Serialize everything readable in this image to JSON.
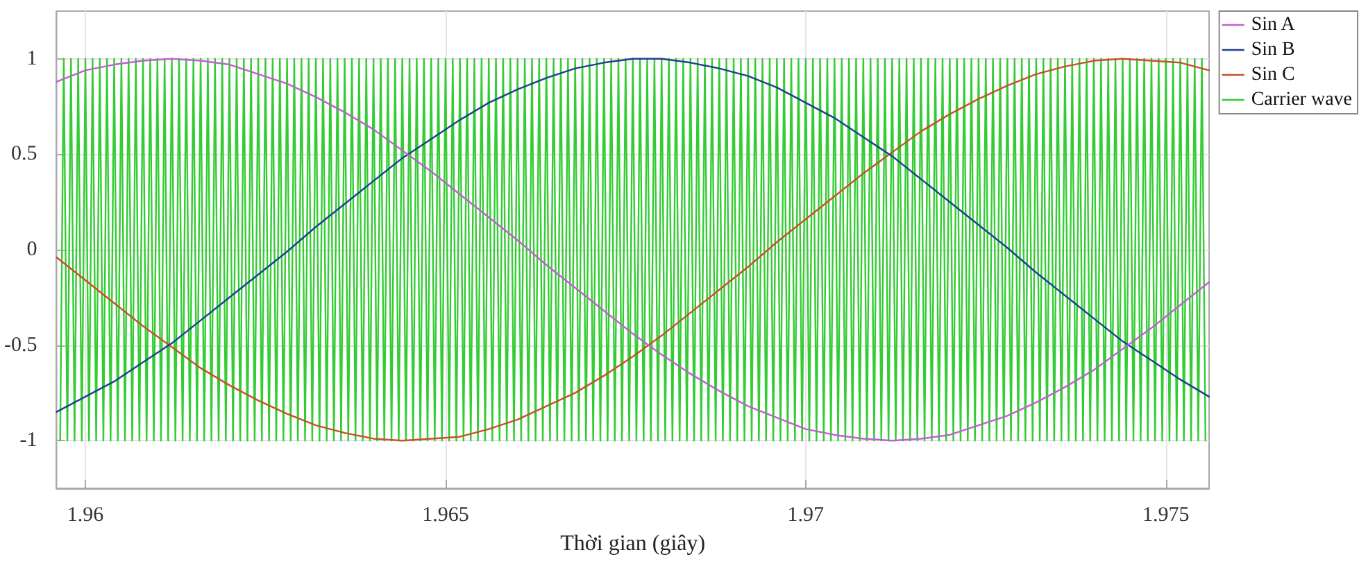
{
  "chart_data": {
    "type": "line",
    "xlabel": "Thời gian (giây)",
    "xlim": [
      1.9596,
      1.9756
    ],
    "xticks": [
      1.96,
      1.965,
      1.97,
      1.975
    ],
    "ylim": [
      -1.25,
      1.25
    ],
    "yticks": [
      -1,
      -0.5,
      0,
      0.5,
      1
    ],
    "grid": true,
    "legend": "top right",
    "marker": "none",
    "line_style": "solid",
    "series": [
      {
        "name": "Sin A",
        "color": "#c060d0",
        "x": [
          1.9596,
          1.96,
          1.9604,
          1.9608,
          1.9612,
          1.9616,
          1.962,
          1.9624,
          1.9628,
          1.9632,
          1.9636,
          1.964,
          1.9644,
          1.9648,
          1.9652,
          1.9656,
          1.966,
          1.9664,
          1.9668,
          1.9672,
          1.9676,
          1.968,
          1.9684,
          1.9688,
          1.9692,
          1.9696,
          1.97,
          1.9704,
          1.9708,
          1.9712,
          1.9716,
          1.972,
          1.9724,
          1.9728,
          1.9732,
          1.9736,
          1.974,
          1.9744,
          1.9748,
          1.9752,
          1.9756
        ],
        "values": [
          0.88,
          0.94,
          0.97,
          0.99,
          1,
          0.99,
          0.97,
          0.92,
          0.87,
          0.8,
          0.72,
          0.63,
          0.52,
          0.41,
          0.29,
          0.17,
          0.05,
          -0.08,
          -0.2,
          -0.32,
          -0.44,
          -0.55,
          -0.65,
          -0.74,
          -0.82,
          -0.88,
          -0.94,
          -0.97,
          -0.99,
          -1,
          -0.99,
          -0.97,
          -0.92,
          -0.87,
          -0.8,
          -0.72,
          -0.63,
          -0.52,
          -0.41,
          -0.29,
          -0.17
        ]
      },
      {
        "name": "Sin B",
        "color": "#1f3f8f",
        "x": [
          1.9596,
          1.96,
          1.9604,
          1.9608,
          1.9612,
          1.9616,
          1.962,
          1.9624,
          1.9628,
          1.9632,
          1.9636,
          1.964,
          1.9644,
          1.9648,
          1.9652,
          1.9656,
          1.966,
          1.9664,
          1.9668,
          1.9672,
          1.9676,
          1.968,
          1.9684,
          1.9688,
          1.9692,
          1.9696,
          1.97,
          1.9704,
          1.9708,
          1.9712,
          1.9716,
          1.972,
          1.9724,
          1.9728,
          1.9732,
          1.9736,
          1.974,
          1.9744,
          1.9748,
          1.9752,
          1.9756
        ],
        "values": [
          -0.85,
          -0.77,
          -0.69,
          -0.59,
          -0.49,
          -0.37,
          -0.25,
          -0.13,
          -0.01,
          0.12,
          0.24,
          0.36,
          0.48,
          0.58,
          0.68,
          0.77,
          0.84,
          0.9,
          0.95,
          0.98,
          1,
          1,
          0.98,
          0.95,
          0.91,
          0.85,
          0.77,
          0.69,
          0.59,
          0.49,
          0.37,
          0.25,
          0.13,
          0.01,
          -0.12,
          -0.24,
          -0.36,
          -0.48,
          -0.58,
          -0.68,
          -0.77
        ]
      },
      {
        "name": "Sin C",
        "color": "#c8502a",
        "x": [
          1.9596,
          1.96,
          1.9604,
          1.9608,
          1.9612,
          1.9616,
          1.962,
          1.9624,
          1.9628,
          1.9632,
          1.9636,
          1.964,
          1.9644,
          1.9648,
          1.9652,
          1.9656,
          1.966,
          1.9664,
          1.9668,
          1.9672,
          1.9676,
          1.968,
          1.9684,
          1.9688,
          1.9692,
          1.9696,
          1.97,
          1.9704,
          1.9708,
          1.9712,
          1.9716,
          1.972,
          1.9724,
          1.9728,
          1.9732,
          1.9736,
          1.974,
          1.9744,
          1.9748,
          1.9752,
          1.9756
        ],
        "values": [
          -0.04,
          -0.16,
          -0.28,
          -0.4,
          -0.51,
          -0.62,
          -0.71,
          -0.79,
          -0.86,
          -0.92,
          -0.96,
          -0.99,
          -1,
          -0.99,
          -0.98,
          -0.94,
          -0.89,
          -0.82,
          -0.75,
          -0.66,
          -0.56,
          -0.45,
          -0.33,
          -0.21,
          -0.09,
          0.04,
          0.16,
          0.28,
          0.4,
          0.51,
          0.62,
          0.71,
          0.79,
          0.86,
          0.92,
          0.96,
          0.99,
          1,
          0.99,
          0.98,
          0.94
        ]
      },
      {
        "name": "Carrier wave",
        "color": "#33cc33",
        "x": [
          1.95965,
          1.9597,
          1.95975,
          1.9598,
          1.95985,
          1.9599,
          1.95995,
          1.96,
          1.96005,
          1.9601,
          1.96015,
          1.9602,
          1.96025,
          1.9603,
          1.96035,
          1.9604,
          1.96045,
          1.9605,
          1.96055,
          1.9606,
          1.96065,
          1.9607,
          1.96075,
          1.9608,
          1.96085,
          1.9609,
          1.96095,
          1.961,
          1.96105,
          1.9611,
          1.96115,
          1.9612,
          1.96125,
          1.9613,
          1.96135,
          1.9614,
          1.96145,
          1.9615,
          1.96155,
          1.9616,
          1.96165,
          1.9617,
          1.96175,
          1.9618,
          1.96185,
          1.9619,
          1.96195,
          1.962,
          1.96205,
          1.9621,
          1.96215,
          1.9622,
          1.96225,
          1.9623,
          1.96235,
          1.9624,
          1.96245,
          1.9625,
          1.96255,
          1.9626,
          1.96265,
          1.9627,
          1.96275,
          1.9628,
          1.96285,
          1.9629,
          1.96295,
          1.963,
          1.96305,
          1.9631,
          1.96315,
          1.9632,
          1.96325,
          1.9633,
          1.96335,
          1.9634,
          1.96345,
          1.9635,
          1.96355,
          1.9636,
          1.96365,
          1.9637,
          1.96375,
          1.9638,
          1.96385,
          1.9639,
          1.96395,
          1.964,
          1.96405,
          1.9641,
          1.96415,
          1.9642,
          1.96425,
          1.9643,
          1.96435,
          1.9644,
          1.96445,
          1.9645,
          1.96455,
          1.9646,
          1.96465,
          1.9647,
          1.96475,
          1.9648,
          1.96485,
          1.9649,
          1.96495,
          1.965,
          1.96505,
          1.9651,
          1.96515,
          1.9652,
          1.96525,
          1.9653,
          1.96535,
          1.9654,
          1.96545,
          1.9655,
          1.96555,
          1.9656,
          1.96565,
          1.9657,
          1.96575,
          1.9658,
          1.96585,
          1.9659,
          1.96595,
          1.966,
          1.96605,
          1.9661,
          1.96615,
          1.9662,
          1.96625,
          1.9663,
          1.96635,
          1.9664,
          1.96645,
          1.9665,
          1.96655,
          1.9666,
          1.96665,
          1.9667,
          1.96675,
          1.9668,
          1.96685,
          1.9669,
          1.96695,
          1.967,
          1.96705,
          1.9671,
          1.96715,
          1.9672,
          1.96725,
          1.9673,
          1.96735,
          1.9674,
          1.96745,
          1.9675,
          1.96755,
          1.9676,
          1.96765,
          1.9677,
          1.96775,
          1.9678,
          1.96785,
          1.9679,
          1.96795,
          1.968,
          1.96805,
          1.9681,
          1.96815,
          1.9682,
          1.96825,
          1.9683,
          1.96835,
          1.9684,
          1.96845,
          1.9685,
          1.96855,
          1.9686,
          1.96865,
          1.9687,
          1.96875,
          1.9688,
          1.96885,
          1.9689,
          1.96895,
          1.969,
          1.96905,
          1.9691,
          1.96915,
          1.9692,
          1.96925,
          1.9693,
          1.96935,
          1.9694,
          1.96945,
          1.9695,
          1.96955,
          1.9696,
          1.96965,
          1.9697,
          1.96975,
          1.9698,
          1.96985,
          1.9699,
          1.96995,
          1.97,
          1.97005,
          1.9701,
          1.97015,
          1.9702,
          1.97025,
          1.9703,
          1.97035,
          1.9704,
          1.97045,
          1.9705,
          1.97055,
          1.9706,
          1.97065,
          1.9707,
          1.97075,
          1.9708,
          1.97085,
          1.9709,
          1.97095,
          1.971,
          1.97105,
          1.9711,
          1.97115,
          1.9712,
          1.97125,
          1.9713,
          1.97135,
          1.9714,
          1.97145,
          1.9715,
          1.97155,
          1.9716,
          1.97165,
          1.9717,
          1.97175,
          1.9718,
          1.97185,
          1.9719,
          1.97195,
          1.972,
          1.97205,
          1.9721,
          1.97215,
          1.9722,
          1.97225,
          1.9723,
          1.97235,
          1.9724,
          1.97245,
          1.9725,
          1.97255,
          1.9726,
          1.97265,
          1.9727,
          1.97275,
          1.9728,
          1.97285,
          1.9729,
          1.97295,
          1.973,
          1.97305,
          1.9731,
          1.97315,
          1.9732,
          1.97325,
          1.9733,
          1.97335,
          1.9734,
          1.97345,
          1.9735,
          1.97355,
          1.9736,
          1.97365,
          1.9737,
          1.97375,
          1.9738,
          1.97385,
          1.9739,
          1.97395,
          1.974,
          1.97405,
          1.9741,
          1.97415,
          1.9742,
          1.97425,
          1.9743,
          1.97435,
          1.9744,
          1.97445,
          1.9745,
          1.97455,
          1.9746,
          1.97465,
          1.9747,
          1.97475,
          1.9748,
          1.97485,
          1.9749,
          1.97495,
          1.975,
          1.97505,
          1.9751,
          1.97515,
          1.9752,
          1.97525,
          1.9753,
          1.97535,
          1.9754,
          1.97545,
          1.9755,
          1.97555
        ],
        "values": [
          -1,
          1,
          -1,
          1,
          -1,
          1,
          -1,
          1,
          -1,
          1,
          -1,
          1,
          -1,
          1,
          -1,
          1,
          -1,
          1,
          -1,
          1,
          -1,
          1,
          -1,
          1,
          -1,
          1,
          -1,
          1,
          -1,
          1,
          -1,
          1,
          -1,
          1,
          -1,
          1,
          -1,
          1,
          -1,
          1,
          -1,
          1,
          -1,
          1,
          -1,
          1,
          -1,
          1,
          -1,
          1,
          -1,
          1,
          -1,
          1,
          -1,
          1,
          -1,
          1,
          -1,
          1,
          -1,
          1,
          -1,
          1,
          -1,
          1,
          -1,
          1,
          -1,
          1,
          -1,
          1,
          -1,
          1,
          -1,
          1,
          -1,
          1,
          -1,
          1,
          -1,
          1,
          -1,
          1,
          -1,
          1,
          -1,
          1,
          -1,
          1,
          -1,
          1,
          -1,
          1,
          -1,
          1,
          -1,
          1,
          -1,
          1,
          -1,
          1,
          -1,
          1,
          -1,
          1,
          -1,
          1,
          -1,
          1,
          -1,
          1,
          -1,
          1,
          -1,
          1,
          -1,
          1,
          -1,
          1,
          -1,
          1,
          -1,
          1,
          -1,
          1,
          -1,
          1,
          -1,
          1,
          -1,
          1,
          -1,
          1,
          -1,
          1,
          -1,
          1,
          -1,
          1,
          -1,
          1,
          -1,
          1,
          -1,
          1,
          -1,
          1,
          -1,
          1,
          -1,
          1,
          -1,
          1,
          -1,
          1,
          -1,
          1,
          -1,
          1,
          -1,
          1,
          -1,
          1,
          -1,
          1,
          -1,
          1,
          -1,
          1,
          -1,
          1,
          -1,
          1,
          -1,
          1,
          -1,
          1,
          -1,
          1,
          -1,
          1,
          -1,
          1,
          -1,
          1,
          -1,
          1,
          -1,
          1,
          -1,
          1,
          -1,
          1,
          -1,
          1,
          -1,
          1,
          -1,
          1,
          -1,
          1,
          -1,
          1,
          -1,
          1,
          -1,
          1,
          -1,
          1,
          -1,
          1,
          -1,
          1,
          -1,
          1,
          -1,
          1,
          -1,
          1,
          -1,
          1,
          -1,
          1,
          -1,
          1,
          -1,
          1,
          -1,
          1,
          -1,
          1,
          -1,
          1,
          -1,
          1,
          -1,
          1,
          -1,
          1,
          -1,
          1,
          -1,
          1,
          -1,
          1,
          -1,
          1,
          -1,
          1,
          -1,
          1,
          -1,
          1,
          -1,
          1,
          -1,
          1,
          -1,
          1,
          -1,
          1,
          -1,
          1,
          -1,
          1,
          -1,
          1,
          -1,
          1,
          -1,
          1,
          -1,
          1,
          -1,
          1,
          -1,
          1,
          -1,
          1,
          -1,
          1,
          -1,
          1,
          -1,
          1,
          -1,
          1,
          -1,
          1,
          -1,
          1,
          -1,
          1,
          -1,
          1,
          -1,
          1,
          -1,
          1,
          -1,
          1,
          -1,
          1,
          -1,
          1,
          -1,
          1,
          -1,
          1,
          -1,
          1,
          -1,
          1,
          -1,
          1,
          -1,
          1,
          -1
        ]
      }
    ]
  }
}
